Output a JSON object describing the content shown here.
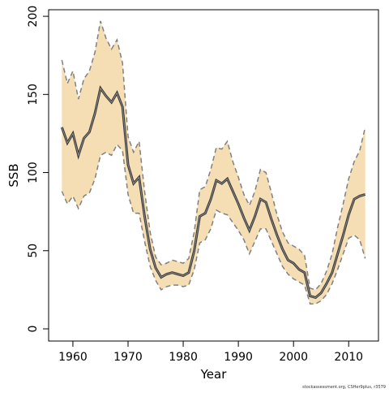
{
  "chart_data": {
    "type": "line",
    "xlabel": "Year",
    "ylabel": "SSB",
    "footnote": "stockassessment.org, CSHer9plus, r3579",
    "x": [
      1958,
      1959,
      1960,
      1961,
      1962,
      1963,
      1964,
      1965,
      1966,
      1967,
      1968,
      1969,
      1970,
      1971,
      1972,
      1973,
      1974,
      1975,
      1976,
      1977,
      1978,
      1979,
      1980,
      1981,
      1982,
      1983,
      1984,
      1985,
      1986,
      1987,
      1988,
      1989,
      1990,
      1991,
      1992,
      1993,
      1994,
      1995,
      1996,
      1997,
      1998,
      1999,
      2000,
      2001,
      2002,
      2003,
      2004,
      2005,
      2006,
      2007,
      2008,
      2009,
      2010,
      2011,
      2012,
      2013
    ],
    "values": [
      129,
      119,
      125,
      111,
      122,
      126,
      138,
      154,
      149,
      145,
      151,
      142,
      105,
      93,
      97,
      72,
      51,
      39,
      33,
      35,
      36,
      35,
      34,
      36,
      50,
      72,
      74,
      83,
      95,
      93,
      96,
      88,
      80,
      71,
      63,
      72,
      83,
      81,
      70,
      60,
      51,
      44,
      42,
      38,
      36,
      21,
      20,
      23,
      29,
      36,
      48,
      60,
      73,
      83,
      85,
      86
    ],
    "upper": [
      172,
      157,
      165,
      147,
      160,
      165,
      177,
      197,
      186,
      179,
      185,
      170,
      123,
      113,
      120,
      88,
      62,
      46,
      41,
      42,
      44,
      43,
      42,
      45,
      62,
      89,
      91,
      102,
      116,
      115,
      120,
      107,
      97,
      86,
      79,
      88,
      102,
      100,
      87,
      73,
      62,
      55,
      53,
      51,
      47,
      26,
      25,
      29,
      37,
      48,
      65,
      80,
      96,
      107,
      114,
      129
    ],
    "lower": [
      88,
      80,
      85,
      77,
      85,
      87,
      96,
      111,
      113,
      111,
      118,
      114,
      86,
      74,
      74,
      56,
      40,
      31,
      25,
      27,
      28,
      28,
      27,
      28,
      38,
      55,
      57,
      64,
      76,
      74,
      73,
      68,
      63,
      57,
      48,
      56,
      64,
      64,
      56,
      48,
      40,
      35,
      32,
      30,
      28,
      16,
      16,
      18,
      22,
      29,
      38,
      48,
      58,
      60,
      57,
      45
    ],
    "line_color": "#3a3a3a",
    "band_color": "#f5deb3",
    "bound_color": "#808080",
    "xlim": [
      1955.6,
      2015.4
    ],
    "ylim": [
      -7.8,
      204.2
    ],
    "xticks": [
      1960,
      1970,
      1980,
      1990,
      2000,
      2010
    ],
    "yticks": [
      0,
      50,
      100,
      150,
      200
    ]
  }
}
